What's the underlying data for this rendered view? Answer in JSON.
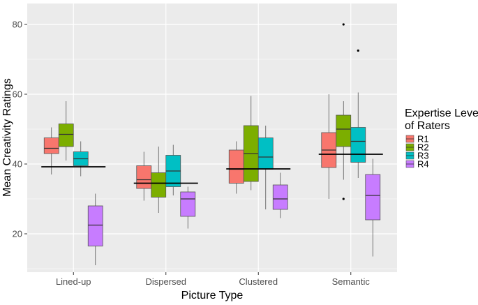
{
  "chart_data": {
    "type": "boxplot",
    "title": "",
    "xlabel": "Picture Type",
    "ylabel": "Mean Creativity Ratings",
    "ylim": [
      9,
      86
    ],
    "yticks": [
      20,
      40,
      60,
      80
    ],
    "categories": [
      "Lined-up",
      "Dispersed",
      "Clustered",
      "Semantic"
    ],
    "legend": {
      "title_line1": "Expertise Level",
      "title_line2": "of Raters",
      "position": "right"
    },
    "series": [
      {
        "name": "R1",
        "color": "#F8766D",
        "boxes": [
          {
            "whisker_low": 37.0,
            "q1": 43.0,
            "median": 44.5,
            "q3": 47.5,
            "whisker_high": 50.5,
            "outliers": []
          },
          {
            "whisker_low": 29.5,
            "q1": 33.0,
            "median": 35.5,
            "q3": 39.5,
            "whisker_high": 43.5,
            "outliers": []
          },
          {
            "whisker_low": 31.5,
            "q1": 34.5,
            "median": 38.5,
            "q3": 44.0,
            "whisker_high": 46.5,
            "outliers": []
          },
          {
            "whisker_low": 30.0,
            "q1": 39.0,
            "median": 44.0,
            "q3": 49.0,
            "whisker_high": 60.0,
            "outliers": []
          }
        ]
      },
      {
        "name": "R2",
        "color": "#7CAE00",
        "boxes": [
          {
            "whisker_low": 41.0,
            "q1": 45.0,
            "median": 48.5,
            "q3": 51.5,
            "whisker_high": 58.0,
            "outliers": []
          },
          {
            "whisker_low": 26.0,
            "q1": 30.5,
            "median": 34.5,
            "q3": 37.5,
            "whisker_high": 45.0,
            "outliers": []
          },
          {
            "whisker_low": 32.5,
            "q1": 35.0,
            "median": 43.0,
            "q3": 51.0,
            "whisker_high": 59.5,
            "outliers": []
          },
          {
            "whisker_low": 35.5,
            "q1": 45.0,
            "median": 50.0,
            "q3": 54.0,
            "whisker_high": 58.0,
            "outliers": [
              80.0,
              30.0
            ]
          }
        ]
      },
      {
        "name": "R3",
        "color": "#00BFC4",
        "boxes": [
          {
            "whisker_low": 36.5,
            "q1": 39.5,
            "median": 41.5,
            "q3": 43.5,
            "whisker_high": 46.5,
            "outliers": []
          },
          {
            "whisker_low": 31.0,
            "q1": 33.5,
            "median": 38.0,
            "q3": 42.5,
            "whisker_high": 45.5,
            "outliers": []
          },
          {
            "whisker_low": 27.0,
            "q1": 38.5,
            "median": 42.0,
            "q3": 47.5,
            "whisker_high": 51.0,
            "outliers": []
          },
          {
            "whisker_low": 36.0,
            "q1": 40.5,
            "median": 46.5,
            "q3": 50.5,
            "whisker_high": 60.5,
            "outliers": [
              72.5
            ]
          }
        ]
      },
      {
        "name": "R4",
        "color": "#C77CFF",
        "boxes": [
          {
            "whisker_low": 11.0,
            "q1": 16.5,
            "median": 22.5,
            "q3": 28.0,
            "whisker_high": 31.5,
            "outliers": []
          },
          {
            "whisker_low": 21.5,
            "q1": 25.0,
            "median": 30.0,
            "q3": 32.0,
            "whisker_high": 33.5,
            "outliers": []
          },
          {
            "whisker_low": 24.5,
            "q1": 27.0,
            "median": 30.0,
            "q3": 34.0,
            "whisker_high": 37.5,
            "outliers": []
          },
          {
            "whisker_low": 13.5,
            "q1": 24.0,
            "median": 31.0,
            "q3": 37.0,
            "whisker_high": 41.5,
            "outliers": []
          }
        ]
      }
    ],
    "group_means": [
      39.2,
      34.5,
      38.6,
      42.8
    ]
  }
}
